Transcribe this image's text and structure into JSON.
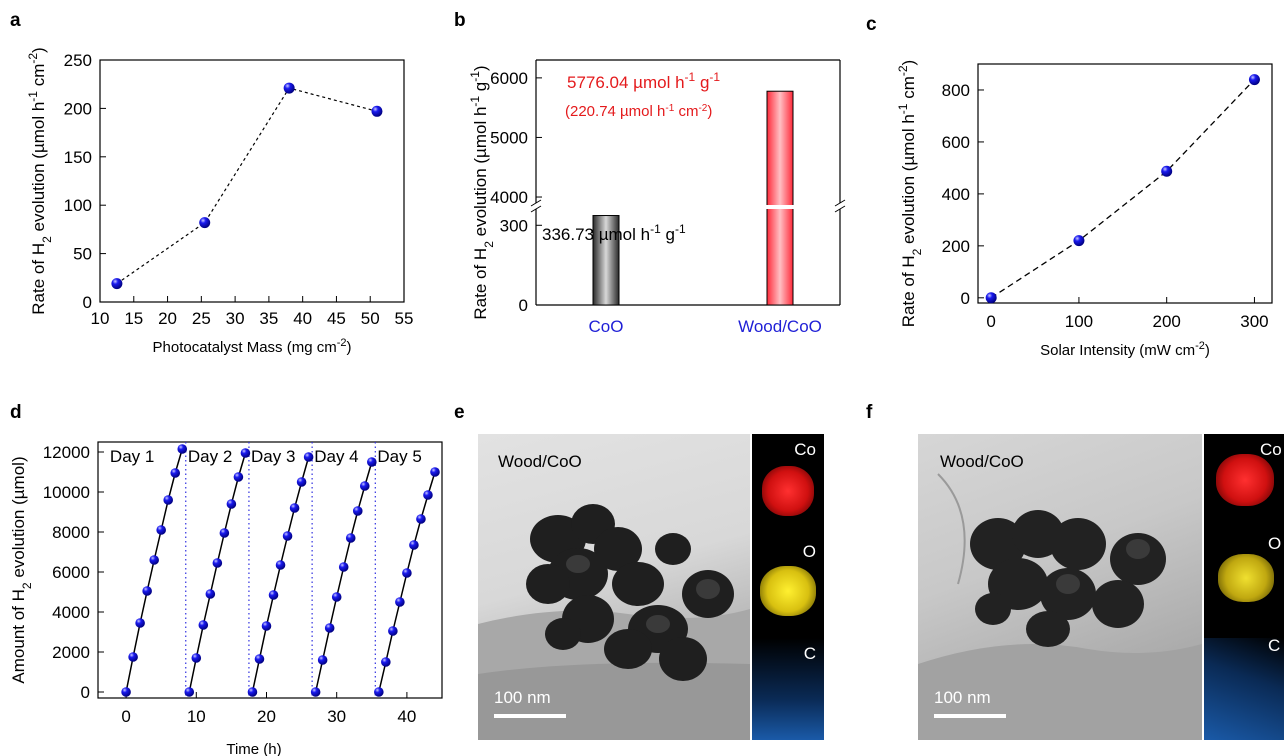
{
  "panels": {
    "a": {
      "letter": "a"
    },
    "b": {
      "letter": "b"
    },
    "c": {
      "letter": "c"
    },
    "d": {
      "letter": "d"
    },
    "e": {
      "letter": "e",
      "sample_label": "Wood/CoO",
      "scale_label": "100 nm",
      "map_labels": [
        "Co",
        "O",
        "C"
      ]
    },
    "f": {
      "letter": "f",
      "sample_label": "Wood/CoO",
      "scale_label": "100 nm",
      "map_labels": [
        "Co",
        "O",
        "C"
      ]
    }
  },
  "colors": {
    "marker": "#1a1af0",
    "bar_red": "#ff3a46",
    "bar_gray": "#6d6d6d",
    "annot_red": "#e41a1c",
    "cat_blue": "#1f1fd6",
    "map_co": "#ff1a1a",
    "map_o": "#f5e11c",
    "map_c": "#1e6fd9"
  },
  "chart_data": [
    {
      "id": "a",
      "type": "scatter",
      "x": [
        12.5,
        25.5,
        38,
        51
      ],
      "y": [
        19,
        82,
        221,
        197
      ],
      "xlabel": "Photocatalyst Mass (mg cm⁻²)",
      "ylabel": "Rate of H₂ evolution (µmol h⁻¹ cm⁻²)",
      "xlim": [
        10,
        55
      ],
      "ylim": [
        0,
        250
      ],
      "xticks": [
        "10",
        "15",
        "20",
        "25",
        "30",
        "35",
        "40",
        "45",
        "50",
        "55"
      ],
      "yticks": [
        "0",
        "50",
        "100",
        "150",
        "200",
        "250"
      ],
      "line": "dashed"
    },
    {
      "id": "b",
      "type": "bar",
      "categories": [
        "CoO",
        "Wood/CoO"
      ],
      "values": [
        336.73,
        5776.04
      ],
      "ylabel": "Rate of H₂ evolution (µmol h⁻¹ g⁻¹)",
      "yticks": [
        "0",
        "300",
        "4000",
        "5000",
        "6000"
      ],
      "axis_break": [
        350,
        3950
      ],
      "annotations": [
        "336.73 µmol h⁻¹ g⁻¹",
        "5776.04 µmol h⁻¹ g⁻¹",
        "(220.74 µmol h⁻¹ cm⁻²)"
      ]
    },
    {
      "id": "c",
      "type": "scatter",
      "x": [
        0,
        100,
        200,
        300
      ],
      "y": [
        0,
        220,
        487,
        840
      ],
      "xlabel": "Solar Intensity (mW cm⁻²)",
      "ylabel": "Rate of H₂ evolution (µmol h⁻¹ cm⁻²)",
      "xlim": [
        -15,
        320
      ],
      "ylim": [
        -20,
        900
      ],
      "xticks": [
        "0",
        "100",
        "200",
        "300"
      ],
      "yticks": [
        "0",
        "200",
        "400",
        "600",
        "800"
      ],
      "line": "dashed"
    },
    {
      "id": "d",
      "type": "line",
      "series": [
        {
          "name": "Day 1",
          "x": [
            0,
            1,
            2,
            3,
            4,
            5,
            6,
            7,
            8
          ],
          "y": [
            0,
            1750,
            3450,
            5050,
            6600,
            8100,
            9600,
            10950,
            12150
          ]
        },
        {
          "name": "Day 2",
          "x": [
            9,
            10,
            11,
            12,
            13,
            14,
            15,
            16,
            17
          ],
          "y": [
            0,
            1700,
            3350,
            4900,
            6450,
            7950,
            9400,
            10750,
            11950
          ]
        },
        {
          "name": "Day 3",
          "x": [
            18,
            19,
            20,
            21,
            22,
            23,
            24,
            25,
            26
          ],
          "y": [
            0,
            1650,
            3300,
            4850,
            6350,
            7800,
            9200,
            10500,
            11750
          ]
        },
        {
          "name": "Day 4",
          "x": [
            27,
            28,
            29,
            30,
            31,
            32,
            33,
            34,
            35
          ],
          "y": [
            0,
            1600,
            3200,
            4750,
            6250,
            7700,
            9050,
            10300,
            11500
          ]
        },
        {
          "name": "Day 5",
          "x": [
            36,
            37,
            38,
            39,
            40,
            41,
            42,
            43,
            44
          ],
          "y": [
            0,
            1500,
            3050,
            4500,
            5950,
            7350,
            8650,
            9850,
            11000
          ]
        }
      ],
      "xlabel": "Time (h)",
      "ylabel": "Amount of H₂ evolution (µmol)",
      "xlim": [
        -4,
        45
      ],
      "ylim": [
        -300,
        12500
      ],
      "xticks": [
        "0",
        "10",
        "20",
        "30",
        "40"
      ],
      "yticks": [
        "0",
        "2000",
        "4000",
        "6000",
        "8000",
        "10000",
        "12000"
      ]
    }
  ]
}
